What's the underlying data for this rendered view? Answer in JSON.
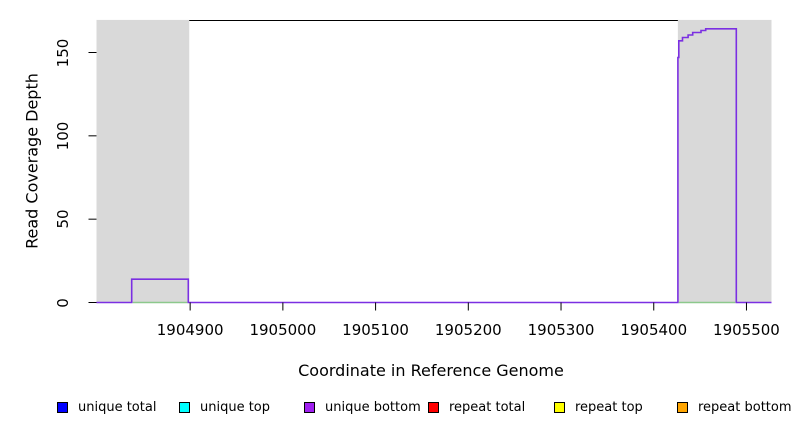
{
  "chart_data": {
    "type": "line",
    "title": "",
    "xlabel": "Coordinate in Reference Genome",
    "ylabel": "Read Coverage Depth",
    "xlim": [
      1904799,
      1905527
    ],
    "ylim": [
      0,
      169.2
    ],
    "grid": false,
    "x_ticks": [
      1904900,
      1905000,
      1905100,
      1905200,
      1905300,
      1905400,
      1905500
    ],
    "x_tick_labels": [
      "1904900",
      "1905000",
      "1905100",
      "1905200",
      "1905300",
      "1905400",
      "1905500"
    ],
    "y_ticks": [
      0,
      50,
      100,
      150
    ],
    "y_tick_labels": [
      "0",
      "50",
      "100",
      "150"
    ],
    "shaded_regions": [
      {
        "x1": 1904799,
        "x2": 1904899,
        "color": "#d9d9d9"
      },
      {
        "x1": 1905426,
        "x2": 1905527,
        "color": "#d9d9d9"
      }
    ],
    "series": [
      {
        "name": "zero-baseline-overlap-left",
        "color": "#8cc88c",
        "width": 1.5,
        "points": [
          [
            1904838,
            0
          ],
          [
            1904897,
            0
          ]
        ]
      },
      {
        "name": "zero-baseline-overlap-right",
        "color": "#8cc88c",
        "width": 1.5,
        "points": [
          [
            1905427,
            0
          ],
          [
            1905488,
            0
          ]
        ]
      },
      {
        "name": "unique bottom coverage",
        "color": "#7b2fe2",
        "width": 1.6,
        "points": [
          [
            1904799,
            0
          ],
          [
            1904837,
            0
          ],
          [
            1904837,
            14
          ],
          [
            1904898,
            14
          ],
          [
            1904898,
            0
          ],
          [
            1905426,
            0
          ],
          [
            1905426,
            147
          ],
          [
            1905427,
            147
          ],
          [
            1905427,
            157
          ],
          [
            1905431,
            157
          ],
          [
            1905431,
            159
          ],
          [
            1905437,
            159
          ],
          [
            1905437,
            160.5
          ],
          [
            1905442,
            160.5
          ],
          [
            1905442,
            162
          ],
          [
            1905451,
            162
          ],
          [
            1905451,
            163.2
          ],
          [
            1905456,
            163.2
          ],
          [
            1905456,
            164.2
          ],
          [
            1905489,
            164.2
          ],
          [
            1905489,
            0
          ],
          [
            1905527,
            0
          ]
        ]
      }
    ],
    "legend_position": "bottom"
  },
  "legend": {
    "items": [
      {
        "label": "unique total",
        "color": "#0000ff"
      },
      {
        "label": "unique top",
        "color": "#00ffff"
      },
      {
        "label": "unique bottom",
        "color": "#a020f0"
      },
      {
        "label": "repeat total",
        "color": "#ff0000"
      },
      {
        "label": "repeat top",
        "color": "#ffff00"
      },
      {
        "label": "repeat bottom",
        "color": "#ffa500"
      }
    ]
  }
}
